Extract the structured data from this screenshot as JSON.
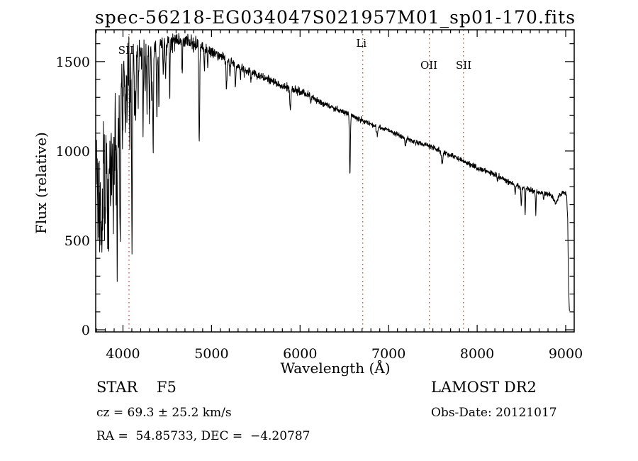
{
  "chart_data": {
    "type": "line",
    "title": "spec-56218-EG034047S021957M01_sp01-170.fits",
    "xlabel": "Wavelength (Å)",
    "ylabel": "Flux (relative)",
    "xlim": [
      3692,
      9096
    ],
    "ylim": [
      0,
      1670
    ],
    "x_ticks": [
      4000,
      5000,
      6000,
      7000,
      8000,
      9000
    ],
    "x_minor_step": 100,
    "y_ticks": [
      0,
      500,
      1000,
      1500
    ],
    "y_minor_step": 100,
    "grid": false,
    "legend": "none",
    "line_color": "#000000",
    "background": "#ffffff",
    "marked_line_color": "#b03a2a",
    "marked_lines": [
      {
        "label": "SII",
        "wavelength": 4068,
        "label_x": 4035,
        "label_y": 76
      },
      {
        "label": "Li",
        "wavelength": 6708,
        "label_x": 6692,
        "label_y": 66
      },
      {
        "label": "OII",
        "wavelength": 7460,
        "label_x": 7455,
        "label_y": 97
      },
      {
        "label": "SII",
        "wavelength": 7845,
        "label_x": 7848,
        "label_y": 97
      }
    ],
    "series_name": "flux",
    "continuum": [
      [
        3692,
        880
      ],
      [
        3715,
        1150
      ],
      [
        3740,
        1280
      ],
      [
        3780,
        1340
      ],
      [
        3830,
        1400
      ],
      [
        3880,
        1430
      ],
      [
        3930,
        1440
      ],
      [
        3980,
        1470
      ],
      [
        4050,
        1510
      ],
      [
        4150,
        1560
      ],
      [
        4300,
        1585
      ],
      [
        4450,
        1605
      ],
      [
        4600,
        1625
      ],
      [
        4750,
        1615
      ],
      [
        4900,
        1580
      ],
      [
        5050,
        1545
      ],
      [
        5200,
        1505
      ],
      [
        5350,
        1465
      ],
      [
        5500,
        1425
      ],
      [
        5650,
        1400
      ],
      [
        5800,
        1365
      ],
      [
        5950,
        1340
      ],
      [
        6100,
        1310
      ],
      [
        6250,
        1270
      ],
      [
        6400,
        1235
      ],
      [
        6550,
        1205
      ],
      [
        6700,
        1170
      ],
      [
        6850,
        1140
      ],
      [
        7000,
        1115
      ],
      [
        7150,
        1080
      ],
      [
        7300,
        1050
      ],
      [
        7450,
        1030
      ],
      [
        7600,
        1000
      ],
      [
        7750,
        965
      ],
      [
        7900,
        930
      ],
      [
        8050,
        895
      ],
      [
        8200,
        870
      ],
      [
        8350,
        830
      ],
      [
        8500,
        795
      ],
      [
        8650,
        775
      ],
      [
        8800,
        760
      ],
      [
        8850,
        745
      ],
      [
        8885,
        705
      ],
      [
        8920,
        745
      ],
      [
        8960,
        770
      ],
      [
        9000,
        765
      ],
      [
        9012,
        740
      ],
      [
        9022,
        620
      ],
      [
        9032,
        250
      ],
      [
        9044,
        70
      ]
    ],
    "absorption_lines": [
      [
        3714,
        760,
        4
      ],
      [
        3726,
        620,
        4
      ],
      [
        3737,
        700,
        4
      ],
      [
        3750,
        520,
        5
      ],
      [
        3760,
        830,
        4
      ],
      [
        3771,
        640,
        4
      ],
      [
        3784,
        900,
        4
      ],
      [
        3798,
        560,
        5
      ],
      [
        3812,
        880,
        4
      ],
      [
        3823,
        720,
        4
      ],
      [
        3835,
        540,
        5
      ],
      [
        3848,
        900,
        4
      ],
      [
        3860,
        790,
        4
      ],
      [
        3874,
        850,
        4
      ],
      [
        3889,
        610,
        5
      ],
      [
        3903,
        870,
        4
      ],
      [
        3920,
        960,
        4
      ],
      [
        3934,
        385,
        5
      ],
      [
        3950,
        1020,
        4
      ],
      [
        3969,
        510,
        6
      ],
      [
        3995,
        1100,
        4
      ],
      [
        4026,
        1090,
        5
      ],
      [
        4045,
        1180,
        4
      ],
      [
        4077,
        1060,
        4
      ],
      [
        4102,
        480,
        5
      ],
      [
        4132,
        1230,
        4
      ],
      [
        4144,
        1170,
        4
      ],
      [
        4172,
        1290,
        4
      ],
      [
        4227,
        1140,
        4
      ],
      [
        4250,
        1320,
        4
      ],
      [
        4271,
        1280,
        4
      ],
      [
        4300,
        1230,
        5
      ],
      [
        4325,
        1350,
        4
      ],
      [
        4340,
        990,
        5
      ],
      [
        4383,
        1140,
        4
      ],
      [
        4405,
        1230,
        4
      ],
      [
        4455,
        1400,
        4
      ],
      [
        4481,
        1420,
        4
      ],
      [
        4528,
        1330,
        4
      ],
      [
        4668,
        1420,
        4
      ],
      [
        4861,
        1040,
        5
      ],
      [
        4920,
        1440,
        4
      ],
      [
        4957,
        1480,
        4
      ],
      [
        5169,
        1340,
        5
      ],
      [
        5208,
        1420,
        4
      ],
      [
        5270,
        1360,
        5
      ],
      [
        5328,
        1410,
        4
      ],
      [
        5371,
        1430,
        4
      ],
      [
        5446,
        1390,
        4
      ],
      [
        5890,
        1230,
        6
      ],
      [
        6122,
        1270,
        4
      ],
      [
        6162,
        1290,
        4
      ],
      [
        6563,
        875,
        5
      ],
      [
        6870,
        1085,
        8
      ],
      [
        7190,
        1030,
        7
      ],
      [
        7605,
        935,
        9
      ],
      [
        8230,
        830,
        5
      ],
      [
        8430,
        760,
        4
      ],
      [
        8498,
        685,
        4
      ],
      [
        8542,
        645,
        4
      ],
      [
        8662,
        650,
        4
      ],
      [
        8750,
        730,
        4
      ]
    ],
    "noise_sigma": [
      [
        3692,
        110
      ],
      [
        3800,
        95
      ],
      [
        3900,
        80
      ],
      [
        4000,
        65
      ],
      [
        4100,
        50
      ],
      [
        4250,
        35
      ],
      [
        4400,
        27
      ],
      [
        4600,
        24
      ],
      [
        4900,
        17
      ],
      [
        5200,
        13
      ],
      [
        5600,
        11
      ],
      [
        6000,
        9
      ],
      [
        6500,
        8
      ],
      [
        7000,
        7
      ],
      [
        7600,
        7
      ],
      [
        8200,
        7
      ],
      [
        8700,
        8
      ],
      [
        9000,
        6
      ],
      [
        9044,
        4
      ]
    ],
    "seed": 20121017
  },
  "annotations": {
    "object_class": "STAR    F5",
    "survey": "LAMOST DR2",
    "cz": "cz = 69.3 ± 25.2 km/s",
    "obs_date": "Obs-Date: 20121017",
    "coords": "RA =  54.85733, DEC =  −4.20787"
  }
}
